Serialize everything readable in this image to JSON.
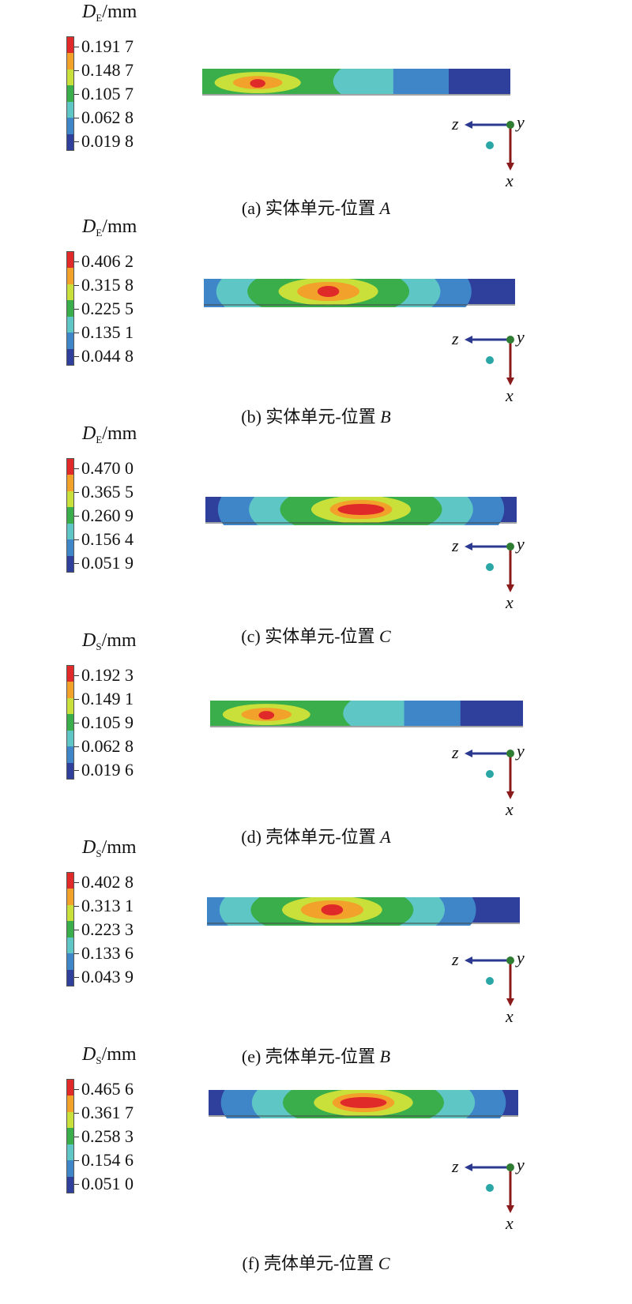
{
  "colors": {
    "scale": [
      "#2e3f9c",
      "#3f86c9",
      "#5ec7c5",
      "#3aae4a",
      "#c9e03a",
      "#f2a12a",
      "#e02a2a"
    ],
    "axis_z": "#2b3990",
    "axis_x": "#8b1a1a",
    "node": "#2e7d32"
  },
  "axes": {
    "z": "z",
    "y": "y",
    "x": "x"
  },
  "panels": [
    {
      "legend": {
        "symbol": "D",
        "sub": "E",
        "unit": "/mm",
        "values": [
          "0.191 7",
          "0.148 7",
          "0.105 7",
          "0.062 8",
          "0.019 8"
        ]
      },
      "caption": {
        "prefix": "(a) 实体单元-位置",
        "pos": "A"
      },
      "peak_location": "left"
    },
    {
      "legend": {
        "symbol": "D",
        "sub": "E",
        "unit": "/mm",
        "values": [
          "0.406 2",
          "0.315 8",
          "0.225 5",
          "0.135 1",
          "0.044 8"
        ]
      },
      "caption": {
        "prefix": "(b) 实体单元-位置",
        "pos": "B"
      },
      "peak_location": "center"
    },
    {
      "legend": {
        "symbol": "D",
        "sub": "E",
        "unit": "/mm",
        "values": [
          "0.470 0",
          "0.365 5",
          "0.260 9",
          "0.156 4",
          "0.051 9"
        ]
      },
      "caption": {
        "prefix": "(c) 实体单元-位置",
        "pos": "C"
      },
      "peak_location": "right-center"
    },
    {
      "legend": {
        "symbol": "D",
        "sub": "S",
        "unit": "/mm",
        "values": [
          "0.192 3",
          "0.149 1",
          "0.105 9",
          "0.062 8",
          "0.019 6"
        ]
      },
      "caption": {
        "prefix": "(d) 壳体单元-位置",
        "pos": "A"
      },
      "peak_location": "left"
    },
    {
      "legend": {
        "symbol": "D",
        "sub": "S",
        "unit": "/mm",
        "values": [
          "0.402 8",
          "0.313 1",
          "0.223 3",
          "0.133 6",
          "0.043 9"
        ]
      },
      "caption": {
        "prefix": "(e) 壳体单元-位置",
        "pos": "B"
      },
      "peak_location": "center"
    },
    {
      "legend": {
        "symbol": "D",
        "sub": "S",
        "unit": "/mm",
        "values": [
          "0.465 6",
          "0.361 7",
          "0.258 3",
          "0.154 6",
          "0.051 0"
        ]
      },
      "caption": {
        "prefix": "(f) 壳体单元-位置",
        "pos": "C"
      },
      "peak_location": "right-center"
    }
  ]
}
